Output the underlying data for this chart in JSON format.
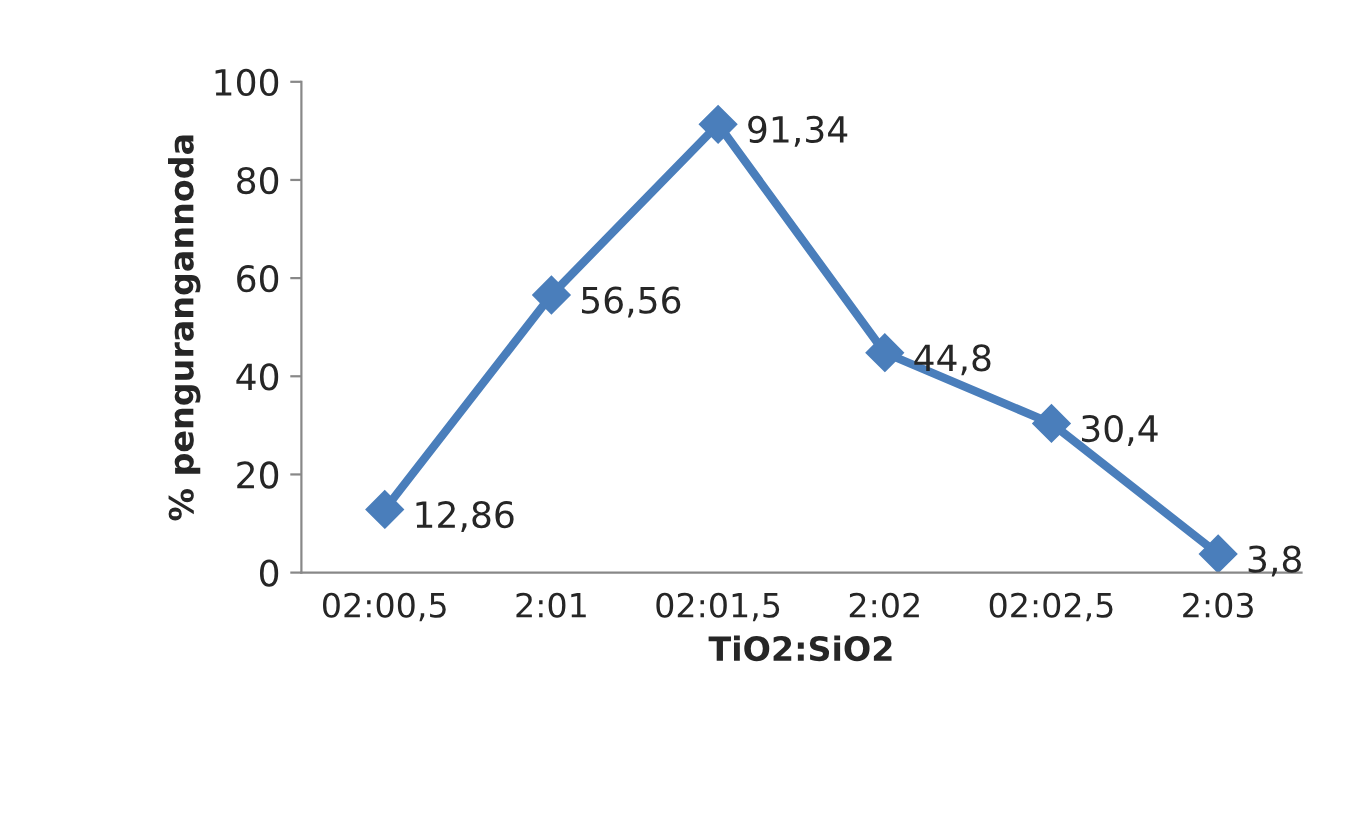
{
  "chart_data": {
    "type": "line",
    "xlabel": "TiO2:SiO2",
    "ylabel": "% pengurangannoda",
    "categories": [
      "02:00,5",
      "2:01",
      "02:01,5",
      "2:02",
      "02:02,5",
      "2:03"
    ],
    "values": [
      12.86,
      56.56,
      91.34,
      44.8,
      30.4,
      3.8
    ],
    "value_labels": [
      "12,86",
      "56,56",
      "91,34",
      "44,8",
      "30,4",
      "3,8"
    ],
    "color": "#4a7ebb",
    "marker": "diamond",
    "line_style": "solid",
    "ylim": [
      0,
      100
    ],
    "yticks": [
      0,
      20,
      40,
      60,
      80,
      100
    ],
    "grid": false,
    "legend": false
  }
}
